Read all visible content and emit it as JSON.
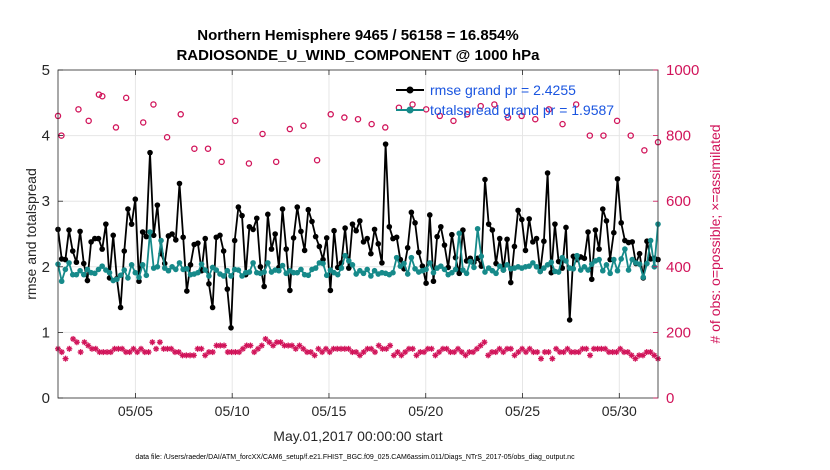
{
  "chart_data": {
    "type": "line",
    "title_line1": "Northern Hemisphere 9465 / 56158 = 16.854%",
    "title_line2": "RADIOSONDE_U_WIND_COMPONENT @ 1000 hPa",
    "xlabel": "May.01,2017 00:00:00 start",
    "ylabel_left": "rmse and totalspread",
    "ylabel_right": "# of obs: o=possible; ×=assimilated",
    "footer": "data file: /Users/raeder/DAI/ATM_forcXX/CAM6_setup/f.e21.FHIST_BGC.f09_025.CAM6assim.011/Diags_NTrS_2017-05/obs_diag_output.nc",
    "x_start_day": 1,
    "x_end_day": 32,
    "x_ticks": [
      {
        "day": 5,
        "label": "05/05"
      },
      {
        "day": 10,
        "label": "05/10"
      },
      {
        "day": 15,
        "label": "05/15"
      },
      {
        "day": 20,
        "label": "05/20"
      },
      {
        "day": 25,
        "label": "05/25"
      },
      {
        "day": 30,
        "label": "05/30"
      }
    ],
    "ylim_left": [
      0,
      5
    ],
    "y_ticks_left": [
      "0",
      "1",
      "2",
      "3",
      "4",
      "5"
    ],
    "ylim_right": [
      0,
      1000
    ],
    "y_ticks_right": [
      "0",
      "200",
      "400",
      "600",
      "800",
      "1000"
    ],
    "grid": true,
    "colors": {
      "rmse": "#000000",
      "spread": "#168a8a",
      "obs": "#d1145a",
      "legend_text": "#1a55e0",
      "grid": "#e6e6e6"
    },
    "series": [
      {
        "name": "rmse grand pr = 2.4255",
        "axis": "left",
        "values": [
          2.57,
          2.12,
          2.11,
          2.56,
          2.24,
          2.07,
          2.54,
          2.05,
          1.79,
          2.38,
          2.43,
          2.43,
          2.27,
          2.65,
          1.83,
          2.48,
          1.82,
          1.38,
          2.24,
          2.88,
          2.65,
          3.03,
          1.78,
          2.53,
          2.46,
          3.74,
          2.48,
          2.94,
          2.2,
          2.05,
          2.47,
          2.5,
          2.41,
          3.27,
          2.45,
          1.63,
          2.03,
          2.34,
          2.36,
          1.94,
          2.43,
          1.74,
          1.38,
          2.45,
          2.48,
          2.24,
          1.66,
          1.07,
          2.4,
          2.91,
          2.78,
          1.88,
          2.61,
          2.57,
          2.74,
          2.0,
          1.7,
          2.8,
          2.27,
          2.5,
          1.99,
          2.88,
          2.27,
          1.64,
          2.44,
          2.91,
          2.54,
          2.25,
          2.87,
          2.69,
          2.46,
          2.31,
          2.11,
          2.44,
          1.64,
          2.55,
          1.99,
          2.06,
          2.59,
          1.98,
          2.65,
          2.55,
          2.7,
          2.38,
          2.43,
          2.2,
          2.57,
          2.35,
          2.06,
          3.87,
          2.61,
          2.43,
          2.45,
          2.11,
          1.97,
          2.29,
          2.83,
          2.67,
          2.22,
          2.01,
          1.75,
          2.79,
          1.78,
          2.46,
          2.61,
          2.33,
          1.99,
          2.49,
          2.14,
          1.9,
          2.56,
          2.09,
          2.13,
          2.07,
          2.13,
          2.01,
          3.33,
          2.65,
          2.56,
          2.05,
          2.43,
          1.95,
          2.42,
          1.76,
          2.31,
          2.86,
          2.72,
          2.25,
          2.73,
          2.38,
          2.43,
          1.93,
          2.39,
          3.43,
          1.91,
          2.65,
          2.08,
          1.98,
          2.6,
          1.19,
          2.16,
          2.11,
          2.15,
          2.13,
          2.53,
          1.81,
          2.56,
          2.27,
          2.88,
          2.7,
          2.11,
          2.52,
          3.34,
          2.67,
          2.4,
          2.37,
          2.38,
          2.05,
          2.2,
          1.83,
          2.39,
          2.12,
          2.13,
          2.11
        ]
      },
      {
        "name": "totalspread grand pr = 1.9587",
        "axis": "left",
        "values": [
          2.04,
          1.78,
          1.96,
          2.06,
          1.88,
          1.88,
          1.94,
          1.88,
          1.96,
          1.91,
          1.9,
          1.96,
          2.01,
          1.95,
          1.91,
          1.79,
          1.81,
          1.87,
          1.95,
          1.83,
          2.03,
          1.91,
          1.84,
          2.03,
          1.87,
          2.53,
          1.98,
          2.0,
          2.4,
          1.98,
          1.94,
          2.0,
          1.96,
          2.06,
          1.96,
          1.97,
          1.88,
          1.89,
          1.91,
          2.04,
          1.95,
          1.86,
          1.99,
          1.95,
          1.89,
          1.86,
          1.94,
          1.86,
          1.96,
          1.95,
          1.86,
          1.91,
          1.92,
          2.06,
          1.91,
          1.9,
          1.92,
          2.06,
          1.92,
          1.95,
          1.94,
          2.02,
          1.9,
          1.94,
          1.91,
          1.91,
          1.96,
          1.88,
          1.87,
          1.96,
          1.98,
          2.06,
          2.05,
          1.87,
          1.95,
          1.91,
          1.88,
          1.98,
          2.17,
          2.09,
          2.03,
          1.89,
          1.94,
          1.9,
          1.96,
          1.86,
          1.94,
          1.89,
          1.91,
          1.9,
          1.88,
          1.91,
          2.14,
          2.01,
          2.05,
          1.89,
          2.14,
          1.97,
          1.92,
          1.94,
          1.96,
          2.06,
          1.91,
          1.98,
          2.01,
          1.96,
          1.88,
          1.91,
          1.96,
          2.51,
          1.95,
          1.9,
          2.08,
          1.99,
          2.58,
          2.16,
          1.92,
          1.98,
          1.94,
          1.9,
          2.01,
          1.95,
          2.03,
          1.97,
          1.98,
          2.0,
          1.98,
          2.0,
          2.01,
          2.06,
          2.0,
          1.93,
          1.98,
          2.03,
          2.07,
          1.93,
          1.92,
          2.14,
          2.09,
          1.98,
          1.97,
          2.17,
          1.95,
          2.0,
          1.95,
          2.04,
          2.09,
          2.11,
          1.94,
          2.03,
          1.9,
          2.11,
          1.94,
          2.12,
          2.27,
          1.95,
          2.11,
          2.06,
          2.04,
          1.84,
          2.05,
          2.4,
          2.0,
          2.65
        ]
      },
      {
        "name": "obs possible",
        "axis": "right",
        "marker": "o",
        "values": [
          860,
          800,
          null,
          null,
          null,
          null,
          880,
          null,
          null,
          845,
          null,
          null,
          925,
          920,
          null,
          null,
          null,
          825,
          null,
          null,
          915,
          null,
          null,
          null,
          null,
          840,
          null,
          null,
          895,
          null,
          null,
          null,
          795,
          null,
          null,
          null,
          865,
          null,
          null,
          null,
          760,
          null,
          null,
          null,
          760,
          null,
          null,
          null,
          720,
          null,
          null,
          null,
          845,
          null,
          null,
          null,
          715,
          null,
          null,
          null,
          805,
          null,
          null,
          null,
          720,
          null,
          null,
          null,
          820,
          null,
          null,
          null,
          830,
          null,
          null,
          null,
          725,
          null,
          null,
          null,
          865,
          null,
          null,
          null,
          855,
          null,
          null,
          null,
          850,
          null,
          null,
          null,
          835,
          null,
          null,
          null,
          825,
          null,
          null,
          null,
          885,
          null,
          null,
          null,
          895,
          null,
          null,
          null,
          880,
          null,
          null,
          null,
          860,
          null,
          null,
          null,
          845,
          null,
          null,
          null,
          865,
          null,
          null,
          null,
          890,
          null,
          null,
          null,
          895,
          null,
          null,
          null,
          855,
          null,
          null,
          null,
          860,
          null,
          null,
          null,
          850,
          null,
          null,
          null,
          880,
          null,
          null,
          null,
          835,
          null,
          null,
          null,
          895,
          null,
          null,
          null,
          800,
          null,
          null,
          null,
          800,
          null,
          null,
          null,
          845,
          null,
          null,
          null,
          800,
          null,
          null,
          null,
          755,
          null,
          null,
          null,
          780
        ]
      },
      {
        "name": "obs assimilated",
        "axis": "right",
        "marker": "x",
        "values": [
          150,
          140,
          120,
          150,
          180,
          170,
          140,
          170,
          160,
          150,
          150,
          140,
          140,
          140,
          140,
          150,
          150,
          150,
          140,
          140,
          150,
          140,
          150,
          140,
          140,
          170,
          150,
          170,
          150,
          150,
          150,
          140,
          140,
          130,
          130,
          130,
          130,
          150,
          150,
          130,
          140,
          140,
          160,
          160,
          160,
          140,
          140,
          140,
          140,
          150,
          160,
          160,
          140,
          150,
          160,
          180,
          170,
          160,
          170,
          170,
          160,
          160,
          160,
          150,
          160,
          150,
          140,
          140,
          130,
          150,
          140,
          150,
          140,
          150,
          150,
          150,
          150,
          150,
          140,
          140,
          130,
          140,
          150,
          150,
          140,
          160,
          150,
          150,
          160,
          130,
          140,
          130,
          140,
          150,
          150,
          130,
          140,
          140,
          150,
          150,
          130,
          140,
          150,
          150,
          140,
          140,
          150,
          140,
          130,
          140,
          140,
          150,
          160,
          170,
          130,
          140,
          140,
          150,
          140,
          150,
          150,
          130,
          140,
          150,
          140,
          150,
          140,
          140,
          120,
          140,
          140,
          120,
          150,
          140,
          140,
          150,
          140,
          140,
          140,
          150,
          150,
          130,
          150,
          150,
          150,
          150,
          140,
          140,
          140,
          150,
          140,
          140,
          130,
          120,
          130,
          130,
          140,
          140,
          130,
          120
        ]
      }
    ]
  }
}
